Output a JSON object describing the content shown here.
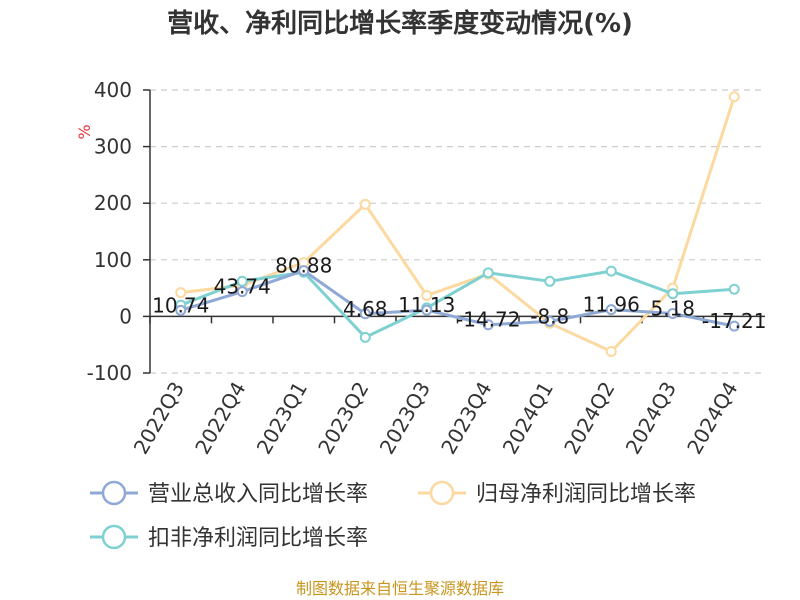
{
  "chart_data": {
    "type": "line",
    "title": "营收、净利同比增长率季度变动情况(%)",
    "ylabel": "%",
    "ylim": [
      -100,
      400
    ],
    "yticks": [
      -100,
      0,
      100,
      200,
      300,
      400
    ],
    "grid": true,
    "legend_position": "bottom",
    "categories": [
      "2022Q3",
      "2022Q4",
      "2023Q1",
      "2023Q2",
      "2023Q3",
      "2023Q4",
      "2024Q1",
      "2024Q2",
      "2024Q3",
      "2024Q4"
    ],
    "series": [
      {
        "name": "营业总收入同比增长率",
        "color": "#8fa9d6",
        "values": [
          10.74,
          43.74,
          80.88,
          4.68,
          11.13,
          -14.72,
          -8.8,
          11.96,
          5.18,
          -17.21
        ],
        "labels": [
          "10.74",
          "43.74",
          "80.88",
          "4.68",
          "11.13",
          "-14.72",
          "-8.8",
          "11.96",
          "5.18",
          "-17.21"
        ]
      },
      {
        "name": "归母净利润同比增长率",
        "color": "#fbd9a0",
        "values": [
          42,
          55,
          95,
          198,
          37,
          75,
          -12,
          -62,
          50,
          388
        ]
      },
      {
        "name": "扣非净利润同比增长率",
        "color": "#7fd1d1",
        "values": [
          20,
          62,
          78,
          -37,
          15,
          77,
          62,
          80,
          40,
          48
        ]
      }
    ]
  },
  "source": "制图数据来自恒生聚源数据库"
}
